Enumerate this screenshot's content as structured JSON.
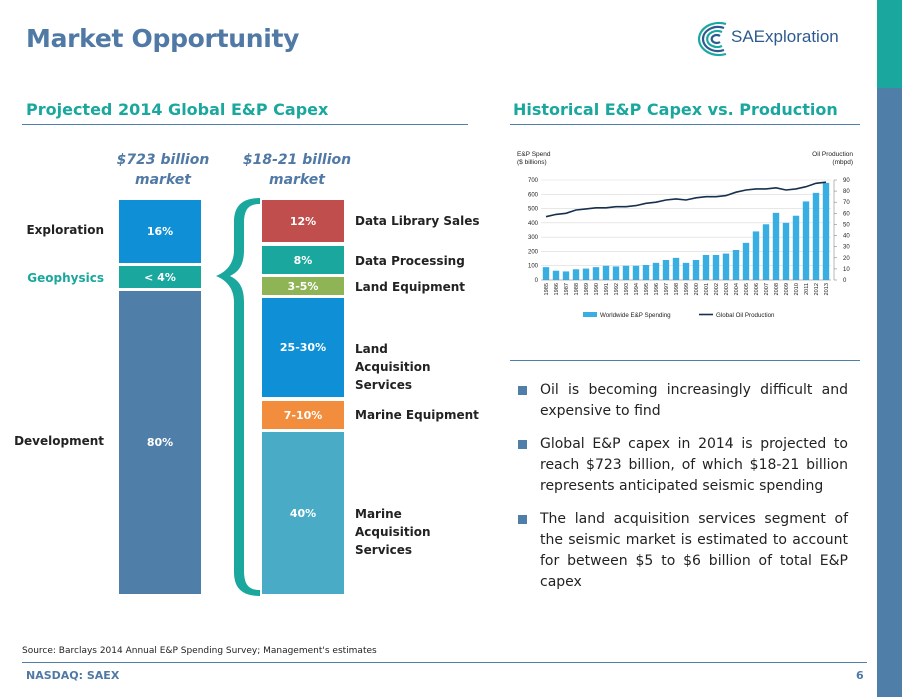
{
  "slide": {
    "title": "Market Opportunity",
    "logo_text": "SAExploration",
    "left_section_title": "Projected 2014 Global E&P Capex",
    "right_section_title": "Historical E&P Capex vs. Production",
    "source": "Source: Barclays 2014 Annual E&P Spending Survey; Management's estimates",
    "footer_left": "NASDAQ: SAEX",
    "page_number": "6"
  },
  "capex_breakdown": {
    "total_label": "$723 billion market",
    "seismic_label": "$18-21 billion market",
    "total_segments": [
      {
        "name": "Exploration",
        "value_label": "16%",
        "color": "#0f8fd6"
      },
      {
        "name": "Geophysics",
        "value_label": "< 4%",
        "color": "#1aa79e"
      },
      {
        "name": "Development",
        "value_label": "80%",
        "color": "#4f7fa9"
      }
    ],
    "seismic_segments": [
      {
        "name": "Data Library Sales",
        "value_label": "12%",
        "color": "#bf4e4c"
      },
      {
        "name": "Data Processing",
        "value_label": "8%",
        "color": "#1aa79e"
      },
      {
        "name": "Land Equipment",
        "value_label": "3-5%",
        "color": "#8fb456"
      },
      {
        "name": "Land Acquisition Services",
        "value_label": "25-30%",
        "color": "#0f8fd6"
      },
      {
        "name": "Marine Equipment",
        "value_label": "7-10%",
        "color": "#f28d3d"
      },
      {
        "name": "Marine Acquisition Services",
        "value_label": "40%",
        "color": "#4aabc6"
      }
    ],
    "bracket_color": "#1aa79e"
  },
  "chart_data": {
    "type": "bar",
    "categories": [
      "1985",
      "1986",
      "1987",
      "1988",
      "1989",
      "1990",
      "1991",
      "1992",
      "1993",
      "1994",
      "1995",
      "1996",
      "1997",
      "1998",
      "1999",
      "2000",
      "2001",
      "2002",
      "2003",
      "2004",
      "2005",
      "2006",
      "2007",
      "2008",
      "2009",
      "2010",
      "2011",
      "2012",
      "2013"
    ],
    "series": [
      {
        "name": "Worldwide E&P Spending",
        "type": "bar",
        "axis": "left",
        "color": "#39aee3",
        "values": [
          90,
          65,
          60,
          75,
          80,
          90,
          100,
          95,
          100,
          100,
          105,
          120,
          140,
          155,
          120,
          140,
          175,
          175,
          185,
          210,
          260,
          340,
          390,
          470,
          400,
          450,
          550,
          610,
          680
        ]
      },
      {
        "name": "Global Oil Production",
        "type": "line",
        "axis": "right",
        "color": "#17304d",
        "values": [
          57,
          59,
          60,
          63,
          64,
          65,
          65,
          66,
          66,
          67,
          69,
          70,
          72,
          73,
          72,
          74,
          75,
          75,
          76,
          79,
          81,
          82,
          82,
          83,
          81,
          82,
          84,
          87,
          88
        ]
      }
    ],
    "y_left_label_lines": [
      "E&P Spend",
      "($ billions)"
    ],
    "y_right_label_lines": [
      "Oil Production",
      "(mbpd)"
    ],
    "ylim_left": [
      0,
      700
    ],
    "yticks_left": [
      0,
      100,
      200,
      300,
      400,
      500,
      600,
      700
    ],
    "ylim_right": [
      0,
      90
    ],
    "yticks_right": [
      0,
      10,
      20,
      30,
      40,
      50,
      60,
      70,
      80,
      90
    ],
    "legend_position": "bottom",
    "grid": true
  },
  "bullets": [
    "Oil is becoming increasingly difficult and expensive to find",
    "Global E&P capex in 2014 is projected to reach $723 billion, of which $18-21 billion represents anticipated seismic spending",
    "The land acquisition services segment of the seismic market is estimated to account for between $5 to $6 billion of total E&P capex"
  ],
  "colors": {
    "title": "#5079a5",
    "accent": "#1aa79e",
    "navy": "#4f7fa9"
  }
}
